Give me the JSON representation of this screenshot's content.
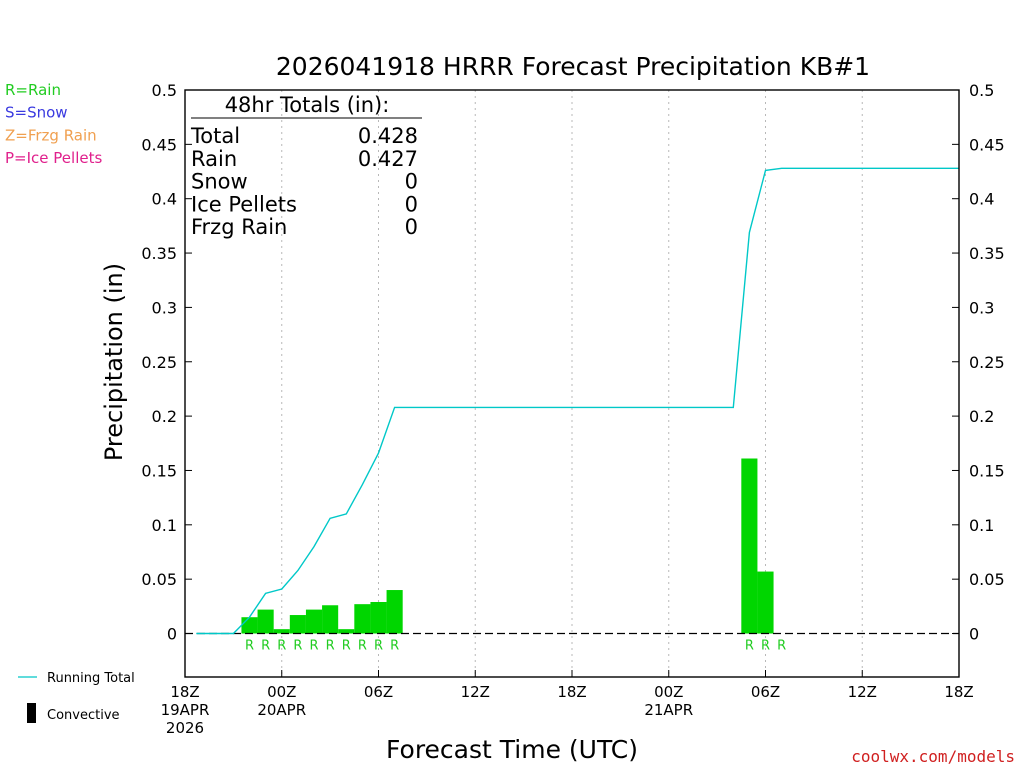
{
  "chart_data": {
    "type": "bar",
    "title": "2026041918 HRRR Forecast Precipitation KB#1",
    "xlabel": "Forecast Time (UTC)",
    "ylabel": "Precipitation (in)",
    "ylim": [
      -0.04,
      0.5
    ],
    "yticks": [
      0,
      0.05,
      0.1,
      0.15,
      0.2,
      0.25,
      0.3,
      0.35,
      0.4,
      0.45,
      0.5
    ],
    "ytick_labels": [
      "0",
      "0.05",
      "0.1",
      "0.15",
      "0.2",
      "0.25",
      "0.3",
      "0.35",
      "0.4",
      "0.45",
      "0.5"
    ],
    "xlim_hours": [
      0,
      48
    ],
    "xticks": [
      {
        "hour": 0,
        "lines": [
          "18Z",
          "19APR",
          "2026"
        ]
      },
      {
        "hour": 6,
        "lines": [
          "00Z",
          "20APR"
        ]
      },
      {
        "hour": 12,
        "lines": [
          "06Z"
        ]
      },
      {
        "hour": 18,
        "lines": [
          "12Z"
        ]
      },
      {
        "hour": 24,
        "lines": [
          "18Z"
        ]
      },
      {
        "hour": 30,
        "lines": [
          "00Z",
          "21APR"
        ]
      },
      {
        "hour": 36,
        "lines": [
          "06Z"
        ]
      },
      {
        "hour": 42,
        "lines": [
          "12Z"
        ]
      },
      {
        "hour": 48,
        "lines": [
          "18Z"
        ]
      }
    ],
    "grid": "vertical dotted",
    "series": [
      {
        "name": "Convective",
        "kind": "bar",
        "color": "#00d600",
        "hours": [
          4,
          5,
          6,
          7,
          8,
          9,
          10,
          11,
          12,
          13,
          35,
          36
        ],
        "values": [
          0.015,
          0.022,
          0.004,
          0.017,
          0.022,
          0.026,
          0.004,
          0.027,
          0.029,
          0.04,
          0.161,
          0.057
        ],
        "ptype": [
          "R",
          "R",
          "R",
          "R",
          "R",
          "R",
          "R",
          "R",
          "R",
          "R",
          "R",
          "R",
          "R"
        ],
        "ptype_hours": [
          4,
          5,
          6,
          7,
          8,
          9,
          10,
          11,
          12,
          13,
          35,
          36,
          37
        ]
      },
      {
        "name": "Running Total",
        "kind": "line",
        "color": "#00c8c8",
        "hours": [
          0.7,
          2.2,
          3,
          4,
          5,
          6,
          7,
          8,
          9,
          10,
          11,
          12,
          13,
          14,
          15,
          16,
          17,
          18,
          19,
          20,
          21,
          22,
          23,
          24,
          25,
          26,
          27,
          28,
          29,
          30,
          31,
          32,
          33,
          34,
          35,
          36,
          37,
          38,
          39,
          40,
          41,
          42,
          43,
          44,
          45,
          46,
          47,
          48
        ],
        "values": [
          0,
          0,
          0,
          0.015,
          0.037,
          0.041,
          0.058,
          0.08,
          0.106,
          0.11,
          0.137,
          0.166,
          0.208,
          0.208,
          0.208,
          0.208,
          0.208,
          0.208,
          0.208,
          0.208,
          0.208,
          0.208,
          0.208,
          0.208,
          0.208,
          0.208,
          0.208,
          0.208,
          0.208,
          0.208,
          0.208,
          0.208,
          0.208,
          0.208,
          0.369,
          0.426,
          0.428,
          0.428,
          0.428,
          0.428,
          0.428,
          0.428,
          0.428,
          0.428,
          0.428,
          0.428,
          0.428,
          0.428
        ]
      }
    ],
    "totals_box": {
      "heading": "48hr Totals (in):",
      "rows": [
        {
          "label": "Total",
          "value": "0.428"
        },
        {
          "label": "Rain",
          "value": "0.427"
        },
        {
          "label": "Snow",
          "value": "0"
        },
        {
          "label": "Ice Pellets",
          "value": "0"
        },
        {
          "label": "Frzg Rain",
          "value": "0"
        }
      ]
    }
  },
  "ptype_legend": [
    {
      "text": "R=Rain",
      "color": "#22cc22"
    },
    {
      "text": "S=Snow",
      "color": "#3a3ae0"
    },
    {
      "text": "Z=Frzg Rain",
      "color": "#f0a050"
    },
    {
      "text": "P=Ice Pellets",
      "color": "#e0208c"
    }
  ],
  "bottom_legend": {
    "running_total": "Running Total",
    "convective": "Convective"
  },
  "credit": {
    "text": "coolwx.com/models",
    "color": "#d02020"
  }
}
